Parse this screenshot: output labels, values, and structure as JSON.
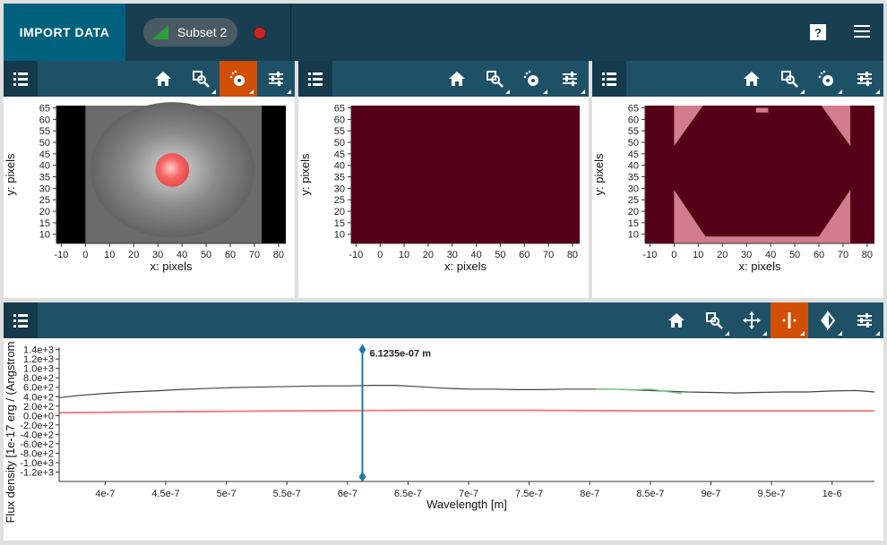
{
  "topbar": {
    "import_label": "IMPORT DATA",
    "subset_label": "Subset 2",
    "help_label": "?"
  },
  "image_viewers": [
    {
      "name": "viewer-1",
      "tools": [
        "home-icon",
        "zoom-icon",
        "subset-icon",
        "settings-icon"
      ],
      "active_tool": "subset-icon",
      "content": "grayscale-galaxy-with-red-circle-subset"
    },
    {
      "name": "viewer-2",
      "tools": [
        "home-icon",
        "zoom-icon",
        "subset-icon",
        "settings-icon"
      ],
      "active_tool": "",
      "content": "uniform-dark-red"
    },
    {
      "name": "viewer-3",
      "tools": [
        "home-icon",
        "zoom-icon",
        "subset-icon",
        "settings-icon"
      ],
      "active_tool": "",
      "content": "pink-with-dark-hexagon"
    }
  ],
  "image_axes": {
    "xlabel": "x: pixels",
    "ylabel": "y: pixels",
    "xticks": [
      "-10",
      "0",
      "10",
      "20",
      "30",
      "40",
      "50",
      "60",
      "70",
      "80"
    ],
    "yticks": [
      "65",
      "60",
      "55",
      "50",
      "45",
      "40",
      "35",
      "30",
      "25",
      "20",
      "15",
      "10"
    ],
    "xlim": [
      -12,
      83
    ],
    "ylim": [
      6,
      66
    ]
  },
  "spectrum_viewer": {
    "tools": [
      "home-icon",
      "zoom-icon",
      "pan-icon",
      "slice-icon",
      "line-list-icon",
      "settings-icon"
    ],
    "active_tool": "slice-icon",
    "slice_label": "6.1235e-07 m",
    "slice_value": 6.1235e-07
  },
  "chart_data": {
    "type": "line",
    "xlabel": "Wavelength [m]",
    "ylabel": "Flux density [1e-17 erg / (Angstrom",
    "xticks": [
      "4e-7",
      "4.5e-7",
      "5e-7",
      "5.5e-7",
      "6e-7",
      "6.5e-7",
      "7e-7",
      "7.5e-7",
      "8e-7",
      "8.5e-7",
      "9e-7",
      "9.5e-7",
      "1e-6"
    ],
    "yticks": [
      "1.4e+3",
      "1.2e+3",
      "1.0e+3",
      "8.0e+2",
      "6.0e+2",
      "4.0e+2",
      "2.0e+2",
      "0.0e+0",
      "-2.0e+2",
      "-4.0e+2",
      "-6.0e+2",
      "-8.0e+2",
      "-1.0e+3",
      "-1.2e+3"
    ],
    "xlim": [
      3.62e-07,
      1.035e-06
    ],
    "ylim": [
      -1400.0,
      1450.0
    ],
    "series": [
      {
        "color": "#444444",
        "x": [
          3.62e-07,
          3.8e-07,
          4e-07,
          4.2e-07,
          4.4e-07,
          4.6e-07,
          4.8e-07,
          5e-07,
          5.2e-07,
          5.4e-07,
          5.6e-07,
          5.8e-07,
          6e-07,
          6.2e-07,
          6.4e-07,
          6.6e-07,
          6.8e-07,
          7e-07,
          7.2e-07,
          7.4e-07,
          7.6e-07,
          7.8e-07,
          8e-07,
          8.2e-07,
          8.4e-07,
          8.6e-07,
          8.8e-07,
          9e-07,
          9.2e-07,
          9.4e-07,
          9.6e-07,
          9.8e-07,
          1e-06,
          1.02e-06,
          1.035e-06
        ],
        "y": [
          380,
          430,
          470,
          500,
          520,
          550,
          570,
          590,
          600,
          610,
          620,
          630,
          630,
          640,
          640,
          610,
          580,
          560,
          560,
          550,
          550,
          560,
          560,
          560,
          540,
          520,
          500,
          490,
          480,
          490,
          500,
          500,
          520,
          530,
          500
        ]
      },
      {
        "color": "#66cc66",
        "x": [
          8.05e-07,
          8.2e-07,
          8.35e-07,
          8.5e-07,
          8.6e-07,
          8.76e-07
        ],
        "y": [
          560,
          560,
          540,
          560,
          520,
          470
        ]
      },
      {
        "color": "#f08080",
        "x": [
          3.62e-07,
          4.5e-07,
          5.5e-07,
          6.5e-07,
          7.5e-07,
          8.5e-07,
          9.5e-07,
          1.035e-06
        ],
        "y": [
          60,
          80,
          100,
          110,
          110,
          100,
          100,
          100
        ]
      }
    ]
  }
}
